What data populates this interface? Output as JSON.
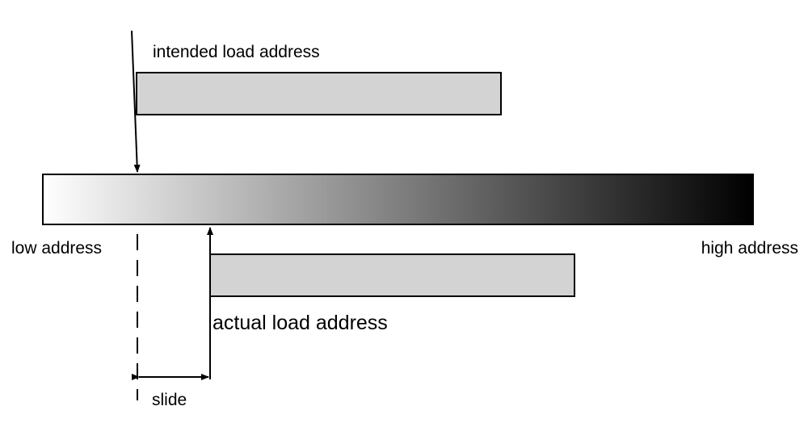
{
  "labels": {
    "intended": "intended load address",
    "low": "low address",
    "high": "high address",
    "actual": "actual load address",
    "slide": "slide"
  },
  "colors": {
    "segment_fill": "#d3d3d3",
    "stroke": "#000000",
    "gradient_start": "#ffffff",
    "gradient_end": "#000000",
    "background": "#ffffff"
  }
}
